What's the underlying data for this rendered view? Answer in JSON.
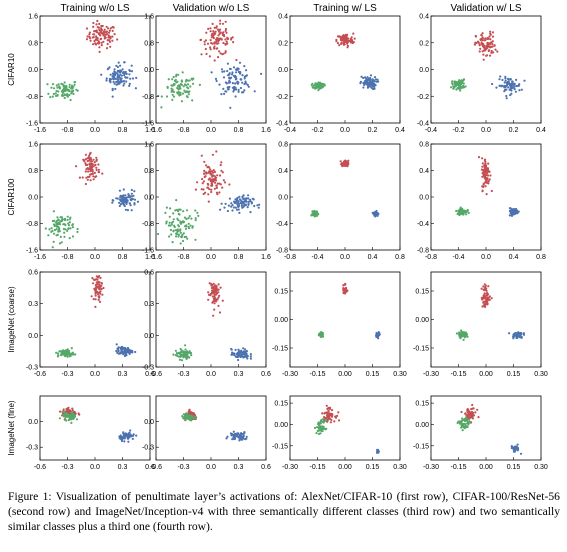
{
  "figure": {
    "column_titles": [
      "Training w/o LS",
      "Validation w/o LS",
      "Training w/ LS",
      "Validation w/ LS"
    ],
    "row_labels": [
      "CIFAR10",
      "CIFAR100",
      "ImageNet (coarse)",
      "ImageNet (fine)"
    ],
    "caption": {
      "label": "Figure 1:",
      "text": "Visualization of penultimate layer’s activations of: AlexNet/CIFAR-10 (first row), CIFAR-100/ResNet-56 (second row) and ImageNet/Inception-v4 with three semantically different classes (third row) and two semantically similar classes plus a third one (fourth row)."
    }
  },
  "colors": {
    "red": "#c44e52",
    "green": "#55a868",
    "blue": "#4c72b0",
    "axis": "#000000"
  },
  "chart_data": [
    {
      "type": "scatter",
      "row": 0,
      "col": 0,
      "xlim": [
        -1.6,
        1.6
      ],
      "ylim": [
        -1.6,
        1.6
      ],
      "xticks": [
        "-1.6",
        "-0.8",
        "0.0",
        "0.8",
        "1.6"
      ],
      "yticks": [
        "1.6",
        "0.8",
        "0.0",
        "-0.8",
        "-1.6"
      ],
      "series": [
        {
          "color": "red",
          "center": [
            0.2,
            1.0
          ],
          "spread": [
            0.35,
            0.3
          ],
          "n": 100
        },
        {
          "color": "green",
          "center": [
            -0.9,
            -0.6
          ],
          "spread": [
            0.35,
            0.25
          ],
          "n": 80
        },
        {
          "color": "blue",
          "center": [
            0.7,
            -0.2
          ],
          "spread": [
            0.3,
            0.3
          ],
          "n": 100
        }
      ]
    },
    {
      "type": "scatter",
      "row": 0,
      "col": 1,
      "xlim": [
        -1.6,
        1.6
      ],
      "ylim": [
        -1.6,
        1.6
      ],
      "xticks": [
        "-1.6",
        "-0.8",
        "0.0",
        "0.8",
        "1.6"
      ],
      "yticks": [
        "1.6",
        "0.8",
        "0.0",
        "-0.8",
        "-1.6"
      ],
      "series": [
        {
          "color": "red",
          "center": [
            0.2,
            0.9
          ],
          "spread": [
            0.4,
            0.4
          ],
          "n": 100
        },
        {
          "color": "green",
          "center": [
            -0.9,
            -0.6
          ],
          "spread": [
            0.4,
            0.35
          ],
          "n": 80
        },
        {
          "color": "blue",
          "center": [
            0.7,
            -0.3
          ],
          "spread": [
            0.4,
            0.35
          ],
          "n": 100
        }
      ]
    },
    {
      "type": "scatter",
      "row": 0,
      "col": 2,
      "xlim": [
        -0.4,
        0.4
      ],
      "ylim": [
        -0.4,
        0.4
      ],
      "xticks": [
        "-0.4",
        "-0.2",
        "0.0",
        "0.2",
        "0.4"
      ],
      "yticks": [
        "0.4",
        "0.2",
        "0.0",
        "-0.2",
        "-0.4"
      ],
      "series": [
        {
          "color": "red",
          "center": [
            0.0,
            0.22
          ],
          "spread": [
            0.05,
            0.04
          ],
          "n": 90
        },
        {
          "color": "green",
          "center": [
            -0.19,
            -0.12
          ],
          "spread": [
            0.03,
            0.02
          ],
          "n": 80
        },
        {
          "color": "blue",
          "center": [
            0.17,
            -0.1
          ],
          "spread": [
            0.05,
            0.04
          ],
          "n": 80
        }
      ]
    },
    {
      "type": "scatter",
      "row": 0,
      "col": 3,
      "xlim": [
        -0.4,
        0.4
      ],
      "ylim": [
        -0.4,
        0.4
      ],
      "xticks": [
        "-0.4",
        "-0.2",
        "0.0",
        "0.2",
        "0.4"
      ],
      "yticks": [
        "0.4",
        "0.2",
        "0.0",
        "-0.2",
        "-0.4"
      ],
      "series": [
        {
          "color": "red",
          "center": [
            0.0,
            0.18
          ],
          "spread": [
            0.06,
            0.08
          ],
          "n": 90
        },
        {
          "color": "green",
          "center": [
            -0.2,
            -0.11
          ],
          "spread": [
            0.04,
            0.03
          ],
          "n": 70
        },
        {
          "color": "blue",
          "center": [
            0.17,
            -0.12
          ],
          "spread": [
            0.07,
            0.05
          ],
          "n": 80
        }
      ]
    },
    {
      "type": "scatter",
      "row": 1,
      "col": 0,
      "xlim": [
        -1.6,
        1.6
      ],
      "ylim": [
        -1.6,
        1.6
      ],
      "xticks": [
        "-1.6",
        "-0.8",
        "0.0",
        "0.8",
        "1.6"
      ],
      "yticks": [
        "1.6",
        "0.8",
        "0.0",
        "-0.8",
        "-1.6"
      ],
      "series": [
        {
          "color": "red",
          "center": [
            -0.1,
            0.9
          ],
          "spread": [
            0.2,
            0.3
          ],
          "n": 80
        },
        {
          "color": "green",
          "center": [
            -1.0,
            -0.9
          ],
          "spread": [
            0.3,
            0.35
          ],
          "n": 80
        },
        {
          "color": "blue",
          "center": [
            0.9,
            -0.1
          ],
          "spread": [
            0.25,
            0.2
          ],
          "n": 80
        }
      ]
    },
    {
      "type": "scatter",
      "row": 1,
      "col": 1,
      "xlim": [
        -1.6,
        1.6
      ],
      "ylim": [
        -1.6,
        1.6
      ],
      "xticks": [
        "-1.6",
        "-0.8",
        "0.0",
        "0.8",
        "1.6"
      ],
      "yticks": [
        "1.6",
        "0.8",
        "0.0",
        "-0.8",
        "-1.6"
      ],
      "series": [
        {
          "color": "red",
          "center": [
            0.0,
            0.5
          ],
          "spread": [
            0.3,
            0.5
          ],
          "n": 90
        },
        {
          "color": "green",
          "center": [
            -0.9,
            -0.8
          ],
          "spread": [
            0.4,
            0.45
          ],
          "n": 90
        },
        {
          "color": "blue",
          "center": [
            0.8,
            -0.2
          ],
          "spread": [
            0.35,
            0.2
          ],
          "n": 80
        }
      ]
    },
    {
      "type": "scatter",
      "row": 1,
      "col": 2,
      "xlim": [
        -0.8,
        0.8
      ],
      "ylim": [
        -0.8,
        0.8
      ],
      "xticks": [
        "-0.8",
        "-0.4",
        "0.0",
        "0.4",
        "0.8"
      ],
      "yticks": [
        "0.8",
        "0.4",
        "0.0",
        "-0.4",
        "-0.8"
      ],
      "series": [
        {
          "color": "red",
          "center": [
            0.0,
            0.5
          ],
          "spread": [
            0.04,
            0.04
          ],
          "n": 60
        },
        {
          "color": "green",
          "center": [
            -0.43,
            -0.25
          ],
          "spread": [
            0.03,
            0.03
          ],
          "n": 60
        },
        {
          "color": "blue",
          "center": [
            0.45,
            -0.25
          ],
          "spread": [
            0.03,
            0.03
          ],
          "n": 60
        }
      ]
    },
    {
      "type": "scatter",
      "row": 1,
      "col": 3,
      "xlim": [
        -0.8,
        0.8
      ],
      "ylim": [
        -0.8,
        0.8
      ],
      "xticks": [
        "-0.8",
        "-0.4",
        "0.0",
        "0.4",
        "0.8"
      ],
      "yticks": [
        "0.8",
        "0.4",
        "0.0",
        "-0.4",
        "-0.8"
      ],
      "series": [
        {
          "color": "red",
          "center": [
            0.0,
            0.35
          ],
          "spread": [
            0.05,
            0.2
          ],
          "n": 80
        },
        {
          "color": "green",
          "center": [
            -0.35,
            -0.22
          ],
          "spread": [
            0.06,
            0.04
          ],
          "n": 70
        },
        {
          "color": "blue",
          "center": [
            0.4,
            -0.22
          ],
          "spread": [
            0.06,
            0.04
          ],
          "n": 70
        }
      ]
    },
    {
      "type": "scatter",
      "row": 2,
      "col": 0,
      "xlim": [
        -0.6,
        0.6
      ],
      "ylim": [
        -0.3,
        0.6
      ],
      "xticks": [
        "-0.6",
        "-0.3",
        "0.0",
        "0.3",
        "0.6"
      ],
      "yticks": [
        "0.6",
        "0.3",
        "0.0",
        "-0.3"
      ],
      "series": [
        {
          "color": "red",
          "center": [
            0.03,
            0.45
          ],
          "spread": [
            0.04,
            0.1
          ],
          "n": 60
        },
        {
          "color": "green",
          "center": [
            -0.32,
            -0.17
          ],
          "spread": [
            0.07,
            0.03
          ],
          "n": 70
        },
        {
          "color": "blue",
          "center": [
            0.32,
            -0.15
          ],
          "spread": [
            0.07,
            0.03
          ],
          "n": 70
        }
      ]
    },
    {
      "type": "scatter",
      "row": 2,
      "col": 1,
      "xlim": [
        -0.6,
        0.6
      ],
      "ylim": [
        -0.3,
        0.6
      ],
      "xticks": [
        "-0.6",
        "-0.3",
        "0.0",
        "0.3",
        "0.6"
      ],
      "yticks": [
        "0.6",
        "0.3",
        "0.0",
        "-0.3"
      ],
      "series": [
        {
          "color": "red",
          "center": [
            0.03,
            0.4
          ],
          "spread": [
            0.05,
            0.12
          ],
          "n": 70
        },
        {
          "color": "green",
          "center": [
            -0.3,
            -0.18
          ],
          "spread": [
            0.08,
            0.04
          ],
          "n": 70
        },
        {
          "color": "blue",
          "center": [
            0.32,
            -0.18
          ],
          "spread": [
            0.08,
            0.04
          ],
          "n": 70
        }
      ]
    },
    {
      "type": "scatter",
      "row": 2,
      "col": 2,
      "xlim": [
        -0.3,
        0.3
      ],
      "ylim": [
        -0.25,
        0.25
      ],
      "xticks": [
        "-0.30",
        "-0.15",
        "0.00",
        "0.15",
        "0.30"
      ],
      "yticks": [
        "0.15",
        "0.00",
        "-0.15"
      ],
      "series": [
        {
          "color": "red",
          "center": [
            0.0,
            0.16
          ],
          "spread": [
            0.01,
            0.03
          ],
          "n": 30
        },
        {
          "color": "green",
          "center": [
            -0.13,
            -0.08
          ],
          "spread": [
            0.01,
            0.01
          ],
          "n": 30
        },
        {
          "color": "blue",
          "center": [
            0.18,
            -0.08
          ],
          "spread": [
            0.01,
            0.01
          ],
          "n": 30
        }
      ]
    },
    {
      "type": "scatter",
      "row": 2,
      "col": 3,
      "xlim": [
        -0.3,
        0.3
      ],
      "ylim": [
        -0.25,
        0.25
      ],
      "xticks": [
        "-0.30",
        "-0.15",
        "0.00",
        "0.15",
        "0.30"
      ],
      "yticks": [
        "0.15",
        "0.00",
        "-0.15"
      ],
      "series": [
        {
          "color": "red",
          "center": [
            0.0,
            0.12
          ],
          "spread": [
            0.02,
            0.05
          ],
          "n": 60
        },
        {
          "color": "green",
          "center": [
            -0.13,
            -0.08
          ],
          "spread": [
            0.02,
            0.015
          ],
          "n": 50
        },
        {
          "color": "blue",
          "center": [
            0.17,
            -0.08
          ],
          "spread": [
            0.025,
            0.015
          ],
          "n": 50
        }
      ]
    },
    {
      "type": "scatter",
      "row": 3,
      "col": 0,
      "xlim": [
        -0.6,
        0.6
      ],
      "ylim": [
        -0.45,
        0.3
      ],
      "xticks": [
        "-0.6",
        "-0.3",
        "0.0",
        "0.3",
        "0.6"
      ],
      "yticks": [
        "0.0",
        "-0.3"
      ],
      "series": [
        {
          "color": "red",
          "center": [
            -0.28,
            0.1
          ],
          "spread": [
            0.07,
            0.05
          ],
          "n": 70
        },
        {
          "color": "green",
          "center": [
            -0.28,
            0.06
          ],
          "spread": [
            0.06,
            0.04
          ],
          "n": 60
        },
        {
          "color": "blue",
          "center": [
            0.35,
            -0.17
          ],
          "spread": [
            0.07,
            0.04
          ],
          "n": 60
        }
      ]
    },
    {
      "type": "scatter",
      "row": 3,
      "col": 1,
      "xlim": [
        -0.6,
        0.6
      ],
      "ylim": [
        -0.45,
        0.3
      ],
      "xticks": [
        "-0.6",
        "-0.3",
        "0.0",
        "0.3",
        "0.6"
      ],
      "yticks": [
        "0.0",
        "-0.3"
      ],
      "series": [
        {
          "color": "red",
          "center": [
            -0.22,
            0.06
          ],
          "spread": [
            0.06,
            0.04
          ],
          "n": 70
        },
        {
          "color": "green",
          "center": [
            -0.25,
            0.05
          ],
          "spread": [
            0.06,
            0.03
          ],
          "n": 60
        },
        {
          "color": "blue",
          "center": [
            0.3,
            -0.17
          ],
          "spread": [
            0.08,
            0.04
          ],
          "n": 60
        }
      ]
    },
    {
      "type": "scatter",
      "row": 3,
      "col": 2,
      "xlim": [
        -0.3,
        0.3
      ],
      "ylim": [
        -0.25,
        0.2
      ],
      "xticks": [
        "-0.30",
        "-0.15",
        "0.00",
        "0.15",
        "0.30"
      ],
      "yticks": [
        "0.15",
        "0.00",
        "-0.15"
      ],
      "series": [
        {
          "color": "red",
          "center": [
            -0.09,
            0.07
          ],
          "spread": [
            0.03,
            0.04
          ],
          "n": 60
        },
        {
          "color": "green",
          "center": [
            -0.13,
            -0.02
          ],
          "spread": [
            0.02,
            0.04
          ],
          "n": 50
        },
        {
          "color": "blue",
          "center": [
            0.18,
            -0.19
          ],
          "spread": [
            0.005,
            0.01
          ],
          "n": 25
        }
      ]
    },
    {
      "type": "scatter",
      "row": 3,
      "col": 3,
      "xlim": [
        -0.3,
        0.3
      ],
      "ylim": [
        -0.25,
        0.2
      ],
      "xticks": [
        "-0.30",
        "-0.15",
        "0.00",
        "0.15",
        "0.30"
      ],
      "yticks": [
        "0.15",
        "0.00",
        "-0.15"
      ],
      "series": [
        {
          "color": "red",
          "center": [
            -0.09,
            0.07
          ],
          "spread": [
            0.03,
            0.04
          ],
          "n": 60
        },
        {
          "color": "green",
          "center": [
            -0.12,
            0.0
          ],
          "spread": [
            0.025,
            0.04
          ],
          "n": 50
        },
        {
          "color": "blue",
          "center": [
            0.16,
            -0.17
          ],
          "spread": [
            0.02,
            0.02
          ],
          "n": 30
        }
      ]
    }
  ]
}
